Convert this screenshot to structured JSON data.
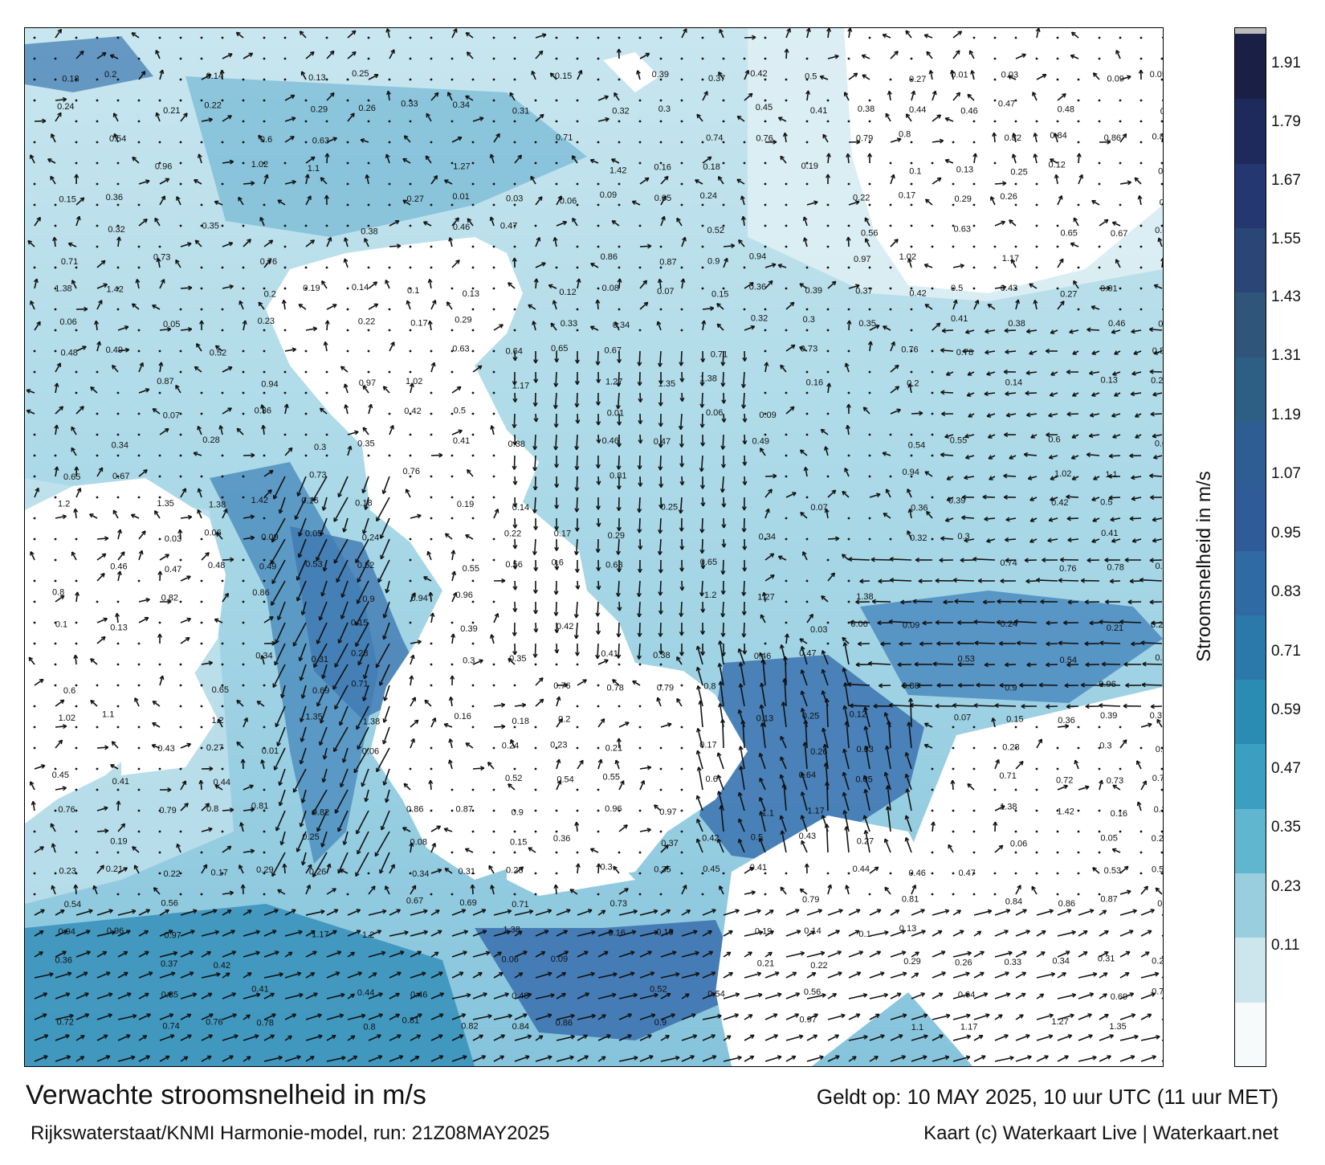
{
  "map": {
    "title": "Verwachte stroomsnelheid in m/s",
    "subtitle": "Rijkswaterstaat/KNMI Harmonie-model, run: 21Z08MAY2025",
    "valid_time": "Geldt op: 10 MAY 2025, 10 uur UTC (11 uur MET)",
    "credit": "Kaart (c) Waterkaart Live | Waterkaart.net",
    "land_color": "#ffffff",
    "sample_values": [
      "0.16",
      "0.18",
      "0.2",
      "0.19",
      "0.14",
      "0.1",
      "0.13",
      "0.25",
      "0.12",
      "0.08",
      "0.07",
      "0.15",
      "0.36",
      "0.39",
      "0.37",
      "0.42",
      "0.5",
      "0.43",
      "0.27",
      "0.01",
      "0.03",
      "0.06",
      "0.09",
      "0.05",
      "0.24",
      "0.23",
      "0.21",
      "0.22",
      "0.17",
      "0.29",
      "0.26",
      "0.33",
      "0.34",
      "0.31",
      "0.28",
      "0.32",
      "0.3",
      "0.35",
      "0.45",
      "0.41",
      "0.38",
      "0.44",
      "0.46",
      "0.47",
      "0.48",
      "0.49",
      "0.53",
      "0.52",
      "0.54",
      "0.55",
      "0.56",
      "0.6",
      "0.63",
      "0.64",
      "0.65",
      "0.67",
      "0.69",
      "0.71",
      "0.72",
      "0.73",
      "0.74",
      "0.76",
      "0.78",
      "0.79",
      "0.8",
      "0.81",
      "0.82",
      "0.84",
      "0.86",
      "0.87",
      "0.9",
      "0.94",
      "0.96",
      "0.97",
      "1.02",
      "1.1",
      "1.17",
      "1.2",
      "1.27",
      "1.35",
      "1.38",
      "1.42"
    ]
  },
  "colorbar": {
    "label": "Stroomsnelheid in m/s",
    "ticks": [
      "1.91",
      "1.79",
      "1.67",
      "1.55",
      "1.43",
      "1.31",
      "1.19",
      "1.07",
      "0.95",
      "0.83",
      "0.71",
      "0.59",
      "0.47",
      "0.35",
      "0.23",
      "0.11"
    ],
    "colors": [
      "#f6fafb",
      "#cde6ee",
      "#98cedd",
      "#60b6cf",
      "#3a9fc1",
      "#2a8bb3",
      "#2b78aa",
      "#2f6aa4",
      "#2f5b99",
      "#2e5d93",
      "#2d5e83",
      "#2f567a",
      "#2a4676",
      "#253770",
      "#1f2a5c",
      "#1a1f45"
    ]
  }
}
